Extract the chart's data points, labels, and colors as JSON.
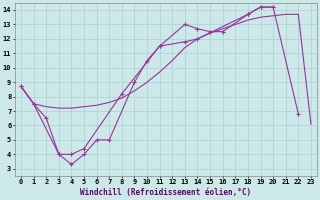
{
  "xlabel": "Windchill (Refroidissement éolien,°C)",
  "background_color": "#cce8e8",
  "grid_color": "#aad0d0",
  "line_color": "#993399",
  "x_ticks": [
    0,
    1,
    2,
    3,
    4,
    5,
    6,
    7,
    8,
    9,
    10,
    11,
    12,
    13,
    14,
    15,
    16,
    17,
    18,
    19,
    20,
    21,
    22,
    23
  ],
  "y_ticks": [
    3,
    4,
    5,
    6,
    7,
    8,
    9,
    10,
    11,
    12,
    13,
    14
  ],
  "ylim": [
    2.5,
    14.5
  ],
  "xlim": [
    -0.5,
    23.5
  ],
  "line1_x": [
    0,
    1,
    2,
    3,
    4,
    5,
    6,
    7,
    8,
    9,
    10,
    11,
    12,
    13,
    14,
    15,
    16,
    17,
    18,
    19,
    20,
    21,
    22,
    23
  ],
  "line1_y": [
    8.7,
    7.5,
    7.3,
    7.2,
    7.2,
    7.3,
    7.4,
    7.6,
    7.9,
    8.4,
    9.0,
    9.7,
    10.5,
    11.4,
    12.0,
    12.4,
    12.7,
    13.0,
    13.3,
    13.5,
    13.6,
    13.7,
    13.7,
    6.1
  ],
  "line2_x": [
    0,
    1,
    3,
    4,
    5,
    8,
    11,
    13,
    14,
    15,
    16,
    18,
    19,
    20,
    22
  ],
  "line2_y": [
    8.7,
    7.5,
    4.0,
    4.0,
    4.4,
    8.2,
    11.5,
    13.0,
    12.7,
    12.5,
    12.5,
    13.7,
    14.2,
    14.2,
    6.8
  ],
  "line3_x": [
    0,
    1,
    2,
    3,
    4,
    5,
    6,
    7,
    9,
    10,
    11,
    13,
    14,
    18,
    19,
    20
  ],
  "line3_y": [
    8.7,
    7.5,
    6.5,
    4.0,
    3.3,
    4.0,
    5.0,
    5.0,
    9.0,
    10.5,
    11.5,
    11.8,
    12.0,
    13.7,
    14.2,
    14.2
  ]
}
